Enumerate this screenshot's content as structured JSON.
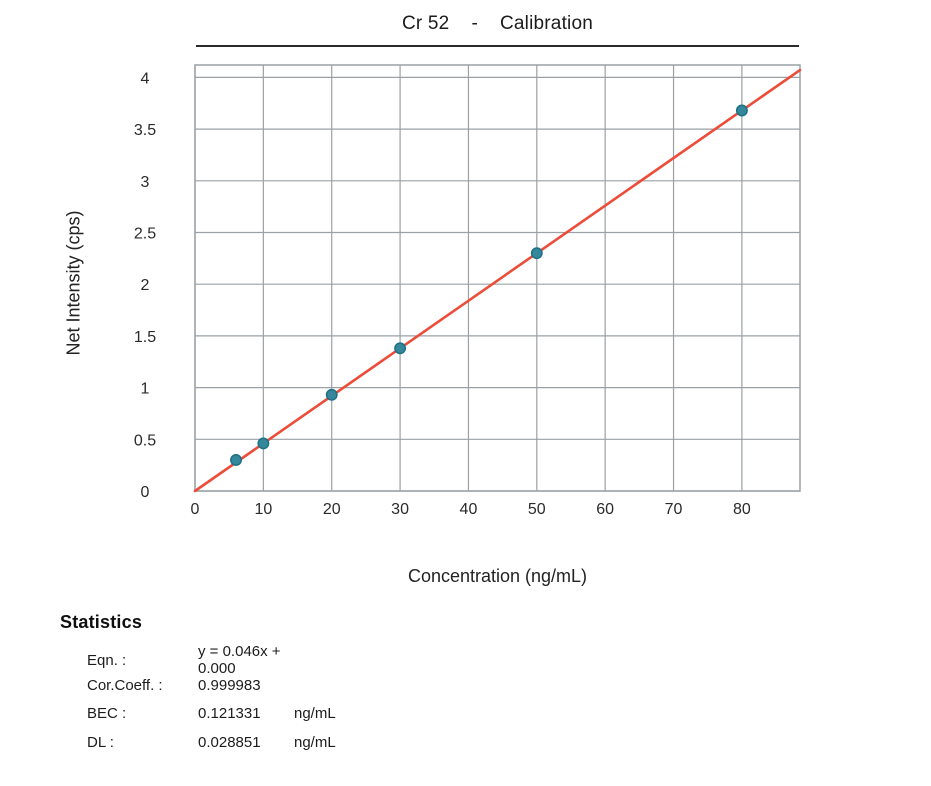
{
  "header": {
    "title_element": "Cr 52",
    "title_separator": "-",
    "title_label": "Calibration"
  },
  "chart_data": {
    "type": "scatter",
    "title": "Cr 52 - Calibration",
    "xlabel": "Concentration (ng/mL)",
    "ylabel": "Net Intensity (cps)",
    "xlim": [
      0,
      88.5
    ],
    "ylim": [
      0,
      4.12
    ],
    "xticks": [
      0,
      10,
      20,
      30,
      40,
      50,
      60,
      70,
      80
    ],
    "yticks": [
      0,
      0.5,
      1,
      1.5,
      2,
      2.5,
      3,
      3.5,
      4
    ],
    "grid": true,
    "legend": "none",
    "points": {
      "x": [
        6,
        10,
        20,
        30,
        50,
        80
      ],
      "y": [
        0.3,
        0.46,
        0.93,
        1.38,
        2.3,
        3.68
      ]
    },
    "fit_line": {
      "slope": 0.046,
      "intercept": 0.0
    },
    "colors": {
      "line": "#ec4c38",
      "marker_fill": "#35889c",
      "marker_stroke": "#1e7084",
      "grid": "#9aa0a5",
      "axis_text": "#2a2a2a"
    }
  },
  "statistics": {
    "heading": "Statistics",
    "rows": [
      {
        "label": "Eqn. :",
        "value": "y = 0.046x + 0.000",
        "unit": ""
      },
      {
        "label": "Cor.Coeff. :",
        "value": "0.999983",
        "unit": ""
      },
      {
        "label": "BEC :",
        "value": "0.121331",
        "unit": "ng/mL"
      },
      {
        "label": "DL :",
        "value": "0.028851",
        "unit": "ng/mL"
      }
    ]
  }
}
